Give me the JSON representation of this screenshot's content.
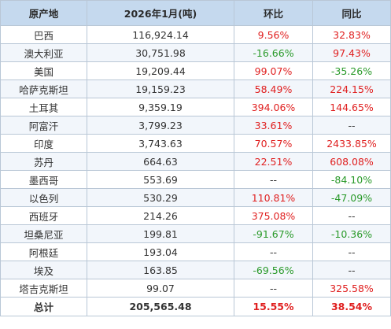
{
  "table": {
    "headers": [
      "原产地",
      "2026年1月(吨)",
      "环比",
      "同比"
    ],
    "rows": [
      {
        "origin": "巴西",
        "volume": "116,924.14",
        "mom": "9.56%",
        "yoy": "32.83%"
      },
      {
        "origin": "澳大利亚",
        "volume": "30,751.98",
        "mom": "-16.66%",
        "yoy": "97.43%"
      },
      {
        "origin": "美国",
        "volume": "19,209.44",
        "mom": "99.07%",
        "yoy": "-35.26%"
      },
      {
        "origin": "哈萨克斯坦",
        "volume": "19,159.23",
        "mom": "58.49%",
        "yoy": "224.15%"
      },
      {
        "origin": "土耳其",
        "volume": "9,359.19",
        "mom": "394.06%",
        "yoy": "144.65%"
      },
      {
        "origin": "阿富汗",
        "volume": "3,799.23",
        "mom": "33.61%",
        "yoy": "--"
      },
      {
        "origin": "印度",
        "volume": "3,743.63",
        "mom": "70.57%",
        "yoy": "2433.85%"
      },
      {
        "origin": "苏丹",
        "volume": "664.63",
        "mom": "22.51%",
        "yoy": "608.08%"
      },
      {
        "origin": "墨西哥",
        "volume": "553.69",
        "mom": "--",
        "yoy": "-84.10%"
      },
      {
        "origin": "以色列",
        "volume": "530.29",
        "mom": "110.81%",
        "yoy": "-47.09%"
      },
      {
        "origin": "西班牙",
        "volume": "214.26",
        "mom": "375.08%",
        "yoy": "--"
      },
      {
        "origin": "坦桑尼亚",
        "volume": "199.81",
        "mom": "-91.67%",
        "yoy": "-10.36%"
      },
      {
        "origin": "阿根廷",
        "volume": "193.04",
        "mom": "--",
        "yoy": "--"
      },
      {
        "origin": "埃及",
        "volume": "163.85",
        "mom": "-69.56%",
        "yoy": "--"
      },
      {
        "origin": "塔吉克斯坦",
        "volume": "99.07",
        "mom": "--",
        "yoy": "325.58%"
      }
    ],
    "total": {
      "origin": "总计",
      "volume": "205,565.48",
      "mom": "15.55%",
      "yoy": "38.54%"
    }
  },
  "colors": {
    "header_bg": "#c5d9ee",
    "zebra_bg": "#f2f6fb",
    "positive": "#e02020",
    "negative": "#2a9a2a",
    "border": "#b9c7d6"
  }
}
